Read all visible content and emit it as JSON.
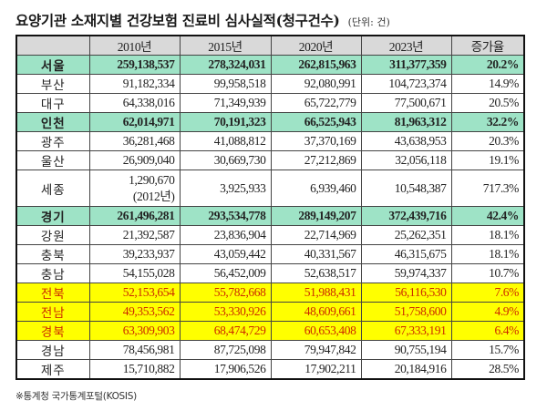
{
  "title": {
    "main": "요양기관 소재지별 건강보험 진료비 심사실적(청구건수)",
    "unit": "(단위: 건)"
  },
  "table": {
    "headers": [
      "",
      "2010년",
      "2015년",
      "2020년",
      "2023년",
      "증가율"
    ],
    "rows": [
      {
        "region": "서울",
        "y2010": "259,138,537",
        "y2015": "278,324,031",
        "y2020": "262,815,963",
        "y2023": "311,377,359",
        "rate": "20.2%",
        "highlight": "green"
      },
      {
        "region": "부산",
        "y2010": "91,182,334",
        "y2015": "99,958,518",
        "y2020": "92,080,991",
        "y2023": "104,723,374",
        "rate": "14.9%",
        "highlight": "none"
      },
      {
        "region": "대구",
        "y2010": "64,338,016",
        "y2015": "71,349,939",
        "y2020": "65,722,779",
        "y2023": "77,500,671",
        "rate": "20.5%",
        "highlight": "none"
      },
      {
        "region": "인천",
        "y2010": "62,014,971",
        "y2015": "70,191,323",
        "y2020": "66,525,943",
        "y2023": "81,963,312",
        "rate": "32.2%",
        "highlight": "green"
      },
      {
        "region": "광주",
        "y2010": "36,281,468",
        "y2015": "41,088,812",
        "y2020": "37,370,169",
        "y2023": "43,638,953",
        "rate": "20.3%",
        "highlight": "none"
      },
      {
        "region": "울산",
        "y2010": "26,909,040",
        "y2015": "30,669,730",
        "y2020": "27,212,869",
        "y2023": "32,056,118",
        "rate": "19.1%",
        "highlight": "none"
      },
      {
        "region": "세종",
        "y2010": "1,290,670",
        "y2010_note": "(2012년)",
        "y2015": "3,925,933",
        "y2020": "6,939,460",
        "y2023": "10,548,387",
        "rate": "717.3%",
        "highlight": "none"
      },
      {
        "region": "경기",
        "y2010": "261,496,281",
        "y2015": "293,534,778",
        "y2020": "289,149,207",
        "y2023": "372,439,716",
        "rate": "42.4%",
        "highlight": "green"
      },
      {
        "region": "강원",
        "y2010": "21,392,587",
        "y2015": "23,836,904",
        "y2020": "22,714,969",
        "y2023": "25,262,351",
        "rate": "18.1%",
        "highlight": "none"
      },
      {
        "region": "충북",
        "y2010": "39,233,937",
        "y2015": "43,059,442",
        "y2020": "40,331,567",
        "y2023": "46,315,675",
        "rate": "18.1%",
        "highlight": "none"
      },
      {
        "region": "충남",
        "y2010": "54,155,028",
        "y2015": "56,452,009",
        "y2020": "52,638,517",
        "y2023": "59,974,337",
        "rate": "10.7%",
        "highlight": "none"
      },
      {
        "region": "전북",
        "y2010": "52,153,654",
        "y2015": "55,782,668",
        "y2020": "51,988,431",
        "y2023": "56,116,530",
        "rate": "7.6%",
        "highlight": "yellow"
      },
      {
        "region": "전남",
        "y2010": "49,353,562",
        "y2015": "53,330,926",
        "y2020": "48,609,661",
        "y2023": "51,758,600",
        "rate": "4.9%",
        "highlight": "yellow"
      },
      {
        "region": "경북",
        "y2010": "63,309,903",
        "y2015": "68,474,729",
        "y2020": "60,653,408",
        "y2023": "67,333,191",
        "rate": "6.4%",
        "highlight": "yellow"
      },
      {
        "region": "경남",
        "y2010": "78,456,981",
        "y2015": "87,725,098",
        "y2020": "79,947,842",
        "y2023": "90,755,194",
        "rate": "15.7%",
        "highlight": "none"
      },
      {
        "region": "제주",
        "y2010": "15,710,882",
        "y2015": "17,906,526",
        "y2020": "17,902,211",
        "y2023": "20,184,916",
        "rate": "28.5%",
        "highlight": "none"
      }
    ]
  },
  "colors": {
    "header_bg": "#d9d9d9",
    "green_highlight": "#9ee3c6",
    "yellow_highlight": "#ffff00",
    "yellow_text": "#cc2a00"
  },
  "source": "※통계청 국가통계포털(KOSIS)"
}
